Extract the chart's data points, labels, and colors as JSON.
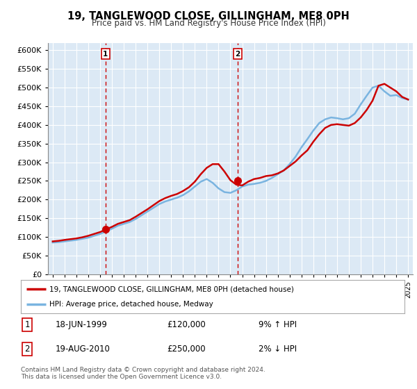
{
  "title": "19, TANGLEWOOD CLOSE, GILLINGHAM, ME8 0PH",
  "subtitle": "Price paid vs. HM Land Registry's House Price Index (HPI)",
  "ylim": [
    0,
    620000
  ],
  "yticks": [
    0,
    50000,
    100000,
    150000,
    200000,
    250000,
    300000,
    350000,
    400000,
    450000,
    500000,
    550000,
    600000
  ],
  "background_color": "#ffffff",
  "plot_bg_color": "#dce9f5",
  "grid_color": "#ffffff",
  "legend_line1": "19, TANGLEWOOD CLOSE, GILLINGHAM, ME8 0PH (detached house)",
  "legend_line2": "HPI: Average price, detached house, Medway",
  "sale1_date": "18-JUN-1999",
  "sale1_price": "£120,000",
  "sale1_hpi": "9% ↑ HPI",
  "sale2_date": "19-AUG-2010",
  "sale2_price": "£250,000",
  "sale2_hpi": "2% ↓ HPI",
  "footnote": "Contains HM Land Registry data © Crown copyright and database right 2024.\nThis data is licensed under the Open Government Licence v3.0.",
  "hpi_color": "#7ab4e0",
  "price_color": "#cc0000",
  "years": [
    1995,
    1995.5,
    1996,
    1996.5,
    1997,
    1997.5,
    1998,
    1998.5,
    1999,
    1999.5,
    2000,
    2000.5,
    2001,
    2001.5,
    2002,
    2002.5,
    2003,
    2003.5,
    2004,
    2004.5,
    2005,
    2005.5,
    2006,
    2006.5,
    2007,
    2007.5,
    2008,
    2008.5,
    2009,
    2009.5,
    2010,
    2010.5,
    2011,
    2011.5,
    2012,
    2012.5,
    2013,
    2013.5,
    2014,
    2014.5,
    2015,
    2015.5,
    2016,
    2016.5,
    2017,
    2017.5,
    2018,
    2018.5,
    2019,
    2019.5,
    2020,
    2020.5,
    2021,
    2021.5,
    2022,
    2022.5,
    2023,
    2023.5,
    2024,
    2024.5,
    2025
  ],
  "hpi_values": [
    85000,
    86000,
    88000,
    90000,
    92000,
    95000,
    98000,
    103000,
    108000,
    115000,
    122000,
    130000,
    135000,
    140000,
    148000,
    158000,
    168000,
    178000,
    188000,
    195000,
    200000,
    205000,
    212000,
    222000,
    235000,
    248000,
    255000,
    245000,
    230000,
    220000,
    218000,
    225000,
    235000,
    240000,
    242000,
    245000,
    250000,
    258000,
    268000,
    278000,
    295000,
    315000,
    340000,
    362000,
    385000,
    405000,
    415000,
    420000,
    418000,
    415000,
    418000,
    430000,
    455000,
    478000,
    500000,
    505000,
    490000,
    478000,
    480000,
    472000,
    468000
  ],
  "price_values": [
    88000,
    89500,
    92000,
    94000,
    96000,
    99000,
    103000,
    108000,
    113000,
    120000,
    127000,
    135000,
    140000,
    145000,
    154000,
    164000,
    174000,
    185000,
    196000,
    204000,
    210000,
    215000,
    223000,
    233000,
    248000,
    268000,
    285000,
    295000,
    295000,
    275000,
    252000,
    240000,
    238000,
    248000,
    255000,
    258000,
    263000,
    265000,
    270000,
    278000,
    290000,
    302000,
    318000,
    332000,
    355000,
    375000,
    392000,
    400000,
    402000,
    400000,
    398000,
    405000,
    420000,
    440000,
    465000,
    505000,
    510000,
    500000,
    490000,
    475000,
    468000
  ],
  "sale1_year": 1999.46,
  "sale1_price_val": 120000,
  "sale2_year": 2010.63,
  "sale2_price_val": 250000,
  "dashed_line_color": "#cc0000"
}
